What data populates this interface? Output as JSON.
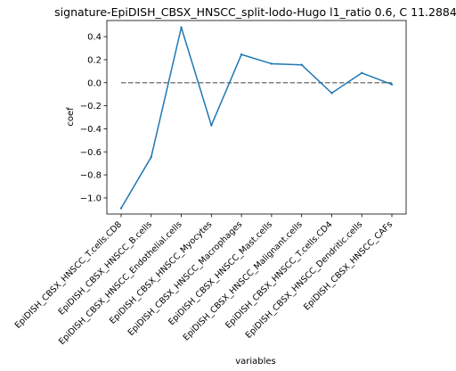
{
  "chart_data": {
    "type": "line",
    "title": "signature-EpiDISH_CBSX_HNSCC_split-lodo-Hugo l1_ratio 0.6, C 11.2884",
    "xlabel": "variables",
    "ylabel": "coef",
    "categories": [
      "EpiDISH_CBSX_HNSCC_T.cells.CD8",
      "EpiDISH_CBSX_HNSCC_B.cells",
      "EpiDISH_CBSX_HNSCC_Endothelial.cells",
      "EpiDISH_CBSX_HNSCC_Myocytes",
      "EpiDISH_CBSX_HNSCC_Macrophages",
      "EpiDISH_CBSX_HNSCC_Mast.cells",
      "EpiDISH_CBSX_HNSCC_Malignant.cells",
      "EpiDISH_CBSX_HNSCC_T.cells.CD4",
      "EpiDISH_CBSX_HNSCC_Dendritic.cells",
      "EpiDISH_CBSX_HNSCC_CAFs"
    ],
    "series": [
      {
        "values": [
          -1.09,
          -0.645,
          0.48,
          -0.37,
          0.245,
          0.165,
          0.155,
          -0.09,
          0.085,
          -0.015
        ]
      }
    ],
    "reference_line": {
      "y": 0.0,
      "style": "dashed"
    },
    "ylim": [
      -1.14,
      0.54
    ],
    "yticks": [
      -1.0,
      -0.8,
      -0.6,
      -0.4,
      -0.2,
      0.0,
      0.2,
      0.4
    ],
    "ytick_labels": [
      "−1.0",
      "−0.8",
      "−0.6",
      "−0.4",
      "−0.2",
      "0.0",
      "0.2",
      "0.4"
    ],
    "grid": false,
    "colors": {
      "line": "#1f77b4",
      "reference": "#808080",
      "axes": "#000000"
    }
  }
}
